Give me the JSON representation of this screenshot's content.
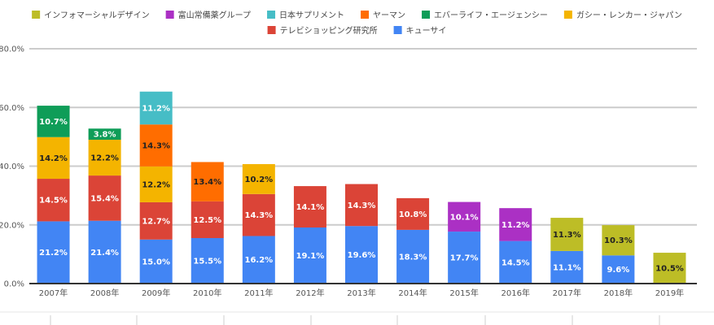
{
  "chart_data": {
    "type": "bar",
    "stacked": true,
    "legend_position": "top",
    "grid": true,
    "ylim": [
      0,
      80
    ],
    "y_ticks": [
      "0.0%",
      "20.0%",
      "40.0%",
      "60.0%",
      "80.0%"
    ],
    "y_tick_values": [
      0,
      20,
      40,
      60,
      80
    ],
    "categories": [
      "2007年",
      "2008年",
      "2009年",
      "2010年",
      "2011年",
      "2012年",
      "2013年",
      "2014年",
      "2015年",
      "2016年",
      "2017年",
      "2018年",
      "2019年"
    ],
    "series": [
      {
        "name": "キューサイ",
        "color": "#4285f4",
        "text_color": "#ffffff",
        "values": [
          21.2,
          21.4,
          15.0,
          15.5,
          16.2,
          19.1,
          19.6,
          18.3,
          17.7,
          14.5,
          11.1,
          9.6,
          null
        ],
        "labels": [
          "21.2%",
          "21.4%",
          "15.0%",
          "15.5%",
          "16.2%",
          "19.1%",
          "19.6%",
          "18.3%",
          "17.7%",
          "14.5%",
          "11.1%",
          "9.6%",
          null
        ]
      },
      {
        "name": "テレビショッピング研究所",
        "color": "#db4437",
        "text_color": "#ffffff",
        "values": [
          14.5,
          15.4,
          12.7,
          12.5,
          14.3,
          14.1,
          14.3,
          10.8,
          null,
          null,
          null,
          null,
          null
        ],
        "labels": [
          "14.5%",
          "15.4%",
          "12.7%",
          "12.5%",
          "14.3%",
          "14.1%",
          "14.3%",
          "10.8%",
          null,
          null,
          null,
          null,
          null
        ]
      },
      {
        "name": "ガシー・レンカー・ジャパン",
        "color": "#f4b400",
        "text_color": "#222222",
        "values": [
          14.2,
          12.2,
          12.2,
          null,
          10.2,
          null,
          null,
          null,
          null,
          null,
          null,
          null,
          null
        ],
        "labels": [
          "14.2%",
          "12.2%",
          "12.2%",
          null,
          "10.2%",
          null,
          null,
          null,
          null,
          null,
          null,
          null,
          null
        ]
      },
      {
        "name": "エバーライフ・エージェンシー",
        "color": "#0f9d58",
        "text_color": "#ffffff",
        "values": [
          10.7,
          3.8,
          null,
          null,
          null,
          null,
          null,
          null,
          null,
          null,
          null,
          null,
          null
        ],
        "labels": [
          "10.7%",
          "3.8%",
          null,
          null,
          null,
          null,
          null,
          null,
          null,
          null,
          null,
          null,
          null
        ]
      },
      {
        "name": "ヤーマン",
        "color": "#ff6d00",
        "text_color": "#222222",
        "values": [
          null,
          null,
          14.3,
          13.4,
          null,
          null,
          null,
          null,
          null,
          null,
          null,
          null,
          null
        ],
        "labels": [
          null,
          null,
          "14.3%",
          "13.4%",
          null,
          null,
          null,
          null,
          null,
          null,
          null,
          null,
          null
        ]
      },
      {
        "name": "日本サプリメント",
        "color": "#46bdc6",
        "text_color": "#ffffff",
        "values": [
          null,
          null,
          11.2,
          null,
          null,
          null,
          null,
          null,
          null,
          null,
          null,
          null,
          null
        ],
        "labels": [
          null,
          null,
          "11.2%",
          null,
          null,
          null,
          null,
          null,
          null,
          null,
          null,
          null,
          null
        ]
      },
      {
        "name": "富山常備薬グループ",
        "color": "#ab30c4",
        "text_color": "#ffffff",
        "values": [
          null,
          null,
          null,
          null,
          null,
          null,
          null,
          null,
          10.1,
          11.2,
          null,
          null,
          null
        ],
        "labels": [
          null,
          null,
          null,
          null,
          null,
          null,
          null,
          null,
          "10.1%",
          "11.2%",
          null,
          null,
          null
        ]
      },
      {
        "name": "インフォマーシャルデザイン",
        "color": "#bdbd26",
        "text_color": "#222222",
        "values": [
          null,
          null,
          null,
          null,
          null,
          null,
          null,
          null,
          null,
          null,
          11.3,
          10.3,
          10.5
        ],
        "labels": [
          null,
          null,
          null,
          null,
          null,
          null,
          null,
          null,
          null,
          null,
          "11.3%",
          "10.3%",
          "10.5%"
        ]
      }
    ],
    "legend_order": [
      7,
      6,
      5,
      4,
      3,
      2,
      1,
      0
    ]
  }
}
